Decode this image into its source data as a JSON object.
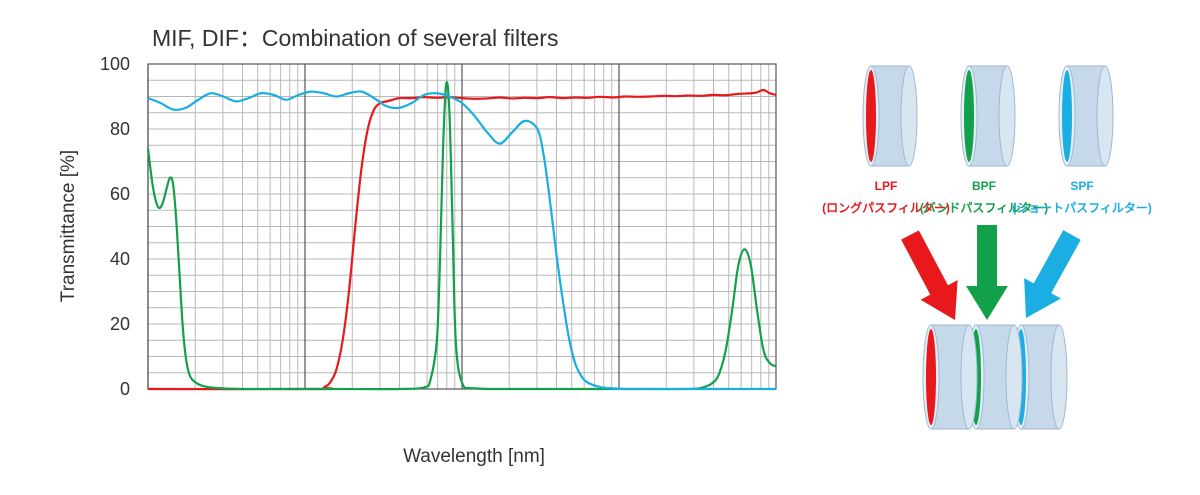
{
  "colors": {
    "lpf": "#e8191c",
    "bpf": "#12a14a",
    "spf": "#1aaee2",
    "filter_body": "#c5d9eb",
    "grid": "#b8b8b8",
    "grid_major": "#555555",
    "text": "#333333"
  },
  "chart_data": {
    "type": "line",
    "title": "MIF, DIF：Combination of several filters",
    "xlabel": "Wavelength [nm]",
    "ylabel": "Transmittance [%]",
    "xlim": [
      0,
      100
    ],
    "ylim": [
      0,
      100
    ],
    "yticks": [
      "0",
      "20",
      "40",
      "60",
      "80",
      "100"
    ],
    "grid": true,
    "series": [
      {
        "name": "LPF",
        "color": "#e8191c",
        "x": [
          0,
          27,
          28,
          29,
          30,
          31,
          32,
          33,
          34,
          35,
          36,
          37,
          38,
          39,
          40,
          42,
          44,
          46,
          48,
          50,
          52,
          54,
          56,
          58,
          60,
          62,
          64,
          66,
          68,
          70,
          72,
          74,
          76,
          78,
          80,
          82,
          84,
          86,
          88,
          90,
          92,
          94,
          96,
          97,
          98,
          99,
          100
        ],
        "y": [
          0,
          0,
          0.5,
          2,
          6,
          15,
          30,
          50,
          68,
          80,
          86,
          88,
          88.5,
          89,
          89.5,
          89.5,
          89.8,
          89.6,
          89.8,
          89.5,
          89.3,
          89.4,
          89.7,
          89.4,
          89.6,
          89.5,
          89.8,
          89.5,
          89.7,
          89.6,
          89.9,
          89.7,
          90.0,
          89.9,
          90.0,
          90.2,
          90.1,
          90.3,
          90.2,
          90.5,
          90.4,
          90.8,
          91.0,
          91.3,
          92.0,
          91.0,
          90.5
        ]
      },
      {
        "name": "BPF",
        "color": "#12a14a",
        "x": [
          0,
          0.8,
          1.6,
          2.3,
          3.0,
          3.5,
          4.0,
          4.5,
          5.0,
          5.5,
          6.0,
          6.5,
          7.0,
          8.0,
          9.0,
          11,
          13,
          15,
          20,
          30,
          40,
          44,
          45,
          46,
          46.5,
          47,
          47.5,
          48,
          48.5,
          49,
          50,
          52,
          60,
          70,
          80,
          85,
          88,
          90,
          91,
          92,
          93,
          94,
          95,
          96,
          97,
          98,
          99,
          100
        ],
        "y": [
          74,
          62,
          56,
          57,
          62,
          65,
          63,
          52,
          36,
          20,
          10,
          5,
          3,
          1.5,
          0.8,
          0.3,
          0.1,
          0,
          0,
          0,
          0,
          0.5,
          3,
          15,
          40,
          75,
          94,
          85,
          50,
          15,
          2,
          0.2,
          0,
          0,
          0,
          0,
          0.3,
          2,
          5,
          12,
          24,
          38,
          43,
          38,
          24,
          12,
          8,
          7
        ]
      },
      {
        "name": "SPF",
        "color": "#1aaee2",
        "x": [
          0,
          2,
          4,
          6,
          8,
          10,
          12,
          14,
          16,
          18,
          20,
          22,
          24,
          26,
          28,
          30,
          32,
          34,
          36,
          38,
          40,
          42,
          44,
          46,
          48,
          50,
          52,
          54,
          56,
          58,
          60,
          62,
          63,
          64,
          65,
          66,
          67,
          68,
          69,
          70,
          72,
          74,
          76,
          78,
          80,
          85,
          90,
          95,
          100
        ],
        "y": [
          89.5,
          88,
          86,
          86.5,
          89,
          91,
          90,
          88.5,
          89.5,
          91,
          90.5,
          89,
          90.5,
          91.5,
          91,
          90,
          91,
          91.5,
          89.5,
          87,
          86.5,
          88,
          90.5,
          91,
          90,
          88,
          84,
          79,
          75.5,
          79,
          82.5,
          80,
          72,
          58,
          42,
          28,
          16,
          8,
          4,
          2,
          0.6,
          0.2,
          0,
          0,
          0,
          0,
          0,
          0,
          0
        ]
      }
    ]
  },
  "diagram": {
    "filters": [
      {
        "code": "LPF",
        "name": "(ロングパスフィルター)",
        "color": "#e8191c"
      },
      {
        "code": "BPF",
        "name": "(バンドパスフィルター)",
        "color": "#12a14a"
      },
      {
        "code": "SPF",
        "name": "(ショートパスフィルター)",
        "color": "#1aaee2"
      }
    ]
  }
}
